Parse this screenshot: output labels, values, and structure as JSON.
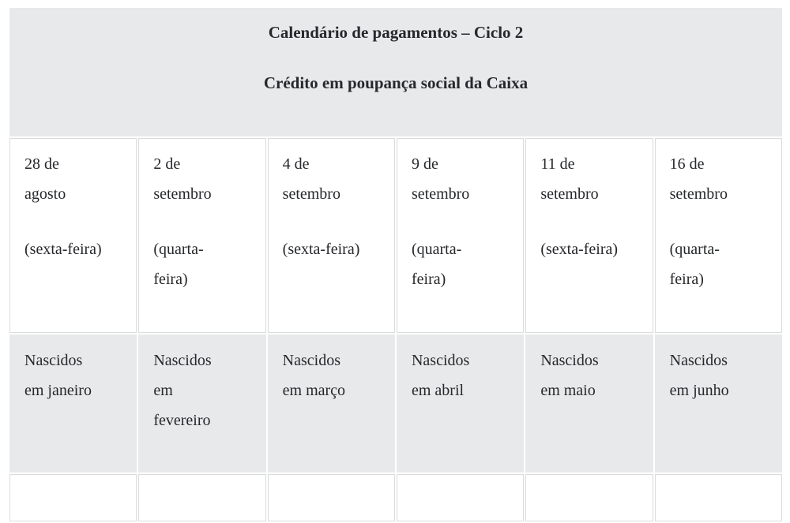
{
  "table": {
    "header": {
      "title": "Calendário de pagamentos – Ciclo 2",
      "subtitle": "Crédito em poupança social da Caixa"
    },
    "colors": {
      "row_shade": "#e8e9ea",
      "cell_border": "#dadbdc",
      "text": "#26282b"
    },
    "columns": [
      {
        "date_lines": [
          "28 de",
          "agosto"
        ],
        "weekday_lines": [
          "(sexta-feira)"
        ],
        "birth_lines": [
          "Nascidos",
          "em janeiro"
        ]
      },
      {
        "date_lines": [
          "2 de",
          "setembro"
        ],
        "weekday_lines": [
          "(quarta-",
          "feira)"
        ],
        "birth_lines": [
          "Nascidos",
          "em",
          "fevereiro"
        ]
      },
      {
        "date_lines": [
          "4 de",
          "setembro"
        ],
        "weekday_lines": [
          "(sexta-feira)"
        ],
        "birth_lines": [
          "Nascidos",
          "em março"
        ]
      },
      {
        "date_lines": [
          "9 de",
          "setembro"
        ],
        "weekday_lines": [
          "(quarta-",
          "feira)"
        ],
        "birth_lines": [
          "Nascidos",
          "em abril"
        ]
      },
      {
        "date_lines": [
          "11 de",
          "setembro"
        ],
        "weekday_lines": [
          "(sexta-feira)"
        ],
        "birth_lines": [
          "Nascidos",
          "em maio"
        ]
      },
      {
        "date_lines": [
          "16 de",
          "setembro"
        ],
        "weekday_lines": [
          "(quarta-",
          "feira)"
        ],
        "birth_lines": [
          "Nascidos",
          "em junho"
        ]
      }
    ]
  }
}
